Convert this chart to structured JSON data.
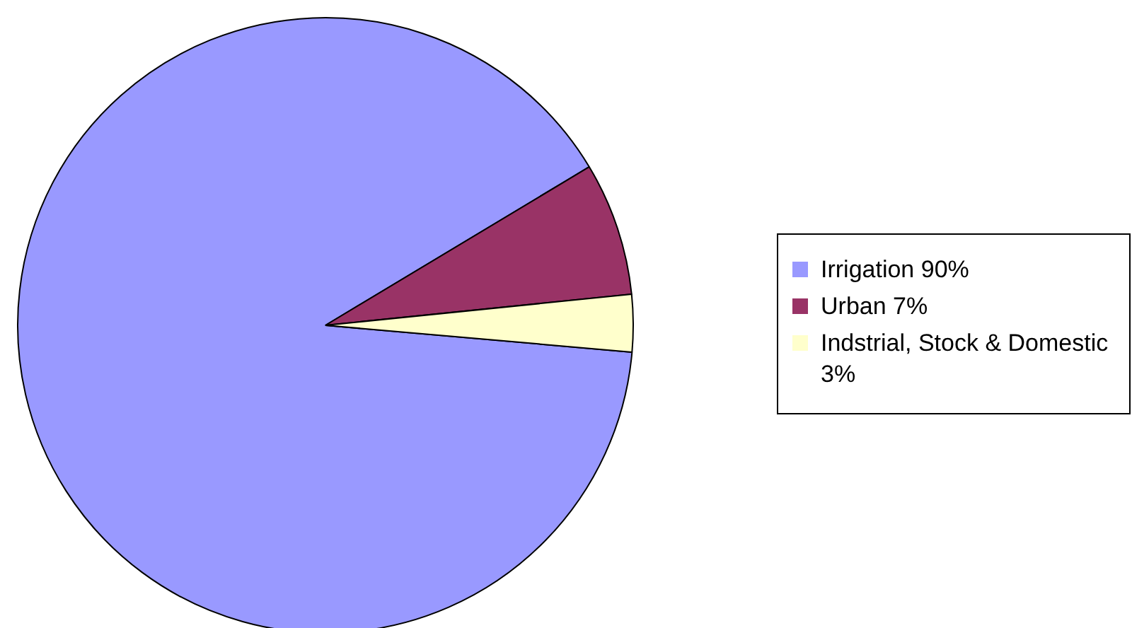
{
  "chart_data": {
    "type": "pie",
    "categories": [
      "Irrigation 90%",
      "Urban 7%",
      "Indstrial, Stock & Domestic 3%"
    ],
    "values": [
      90,
      7,
      3
    ],
    "colors": [
      "#9999ff",
      "#993366",
      "#ffffcc"
    ],
    "legend": "right"
  }
}
